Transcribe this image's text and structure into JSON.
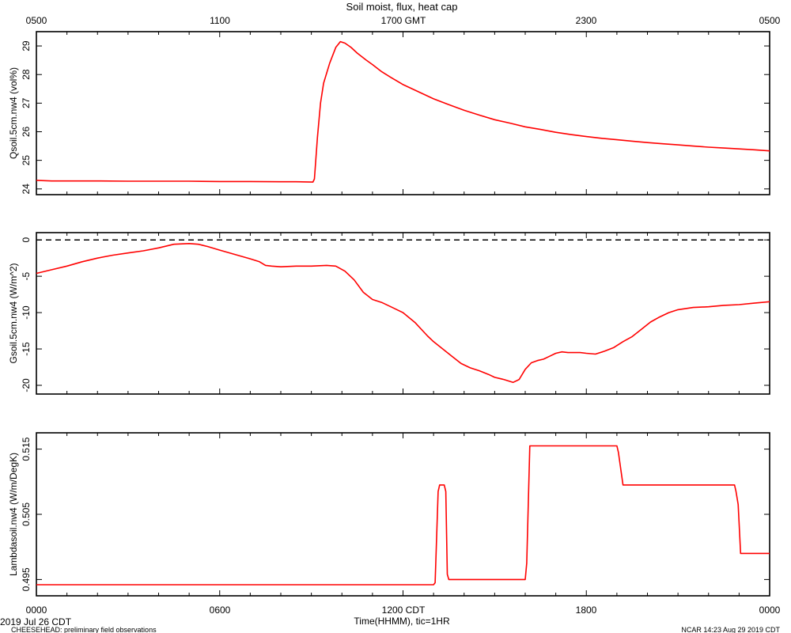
{
  "title": "Soil moist, flux, heat cap",
  "top_axis": {
    "tick_labels": [
      "0500",
      "1100",
      "1700 GMT",
      "2300",
      "0500"
    ]
  },
  "bottom_axis": {
    "tick_labels": [
      "0000",
      "0600",
      "1200 CDT",
      "1800",
      "0000"
    ],
    "xlabel": "Time(HHMM), tic=1HR"
  },
  "footer": {
    "date": "2019 Jul 26 CDT",
    "project": "CHEESEHEAD: preliminary field observations",
    "stamp": "NCAR 14:23 Aug 29 2019 CDT"
  },
  "colors": {
    "series": "#ff0000",
    "axes": "#000000",
    "zero_line": "#000000"
  },
  "chart_data": [
    {
      "type": "line",
      "ylabel": "Qsoil.5cm.nw4 (vol%)",
      "xlim": [
        0,
        24
      ],
      "ylim": [
        23.8,
        29.5
      ],
      "yticks": [
        24,
        25,
        26,
        27,
        28,
        29
      ],
      "grid": false,
      "series": [
        {
          "x": [
            0,
            0.5,
            1,
            2,
            3,
            4,
            5,
            6,
            7,
            8,
            8.5,
            9.0,
            9.05,
            9.1,
            9.2,
            9.3,
            9.4,
            9.6,
            9.8,
            9.95,
            10.1,
            10.3,
            10.5,
            10.8,
            11.0,
            11.3,
            11.6,
            12,
            12.5,
            13,
            13.5,
            14,
            14.5,
            15,
            15.5,
            16,
            16.5,
            17,
            17.5,
            18,
            18.5,
            19,
            19.5,
            20,
            20.5,
            21,
            21.5,
            22,
            22.5,
            23,
            23.5,
            24
          ],
          "y": [
            24.3,
            24.28,
            24.28,
            24.28,
            24.27,
            24.27,
            24.27,
            24.26,
            24.26,
            24.25,
            24.25,
            24.24,
            24.24,
            24.35,
            25.8,
            27.0,
            27.7,
            28.4,
            28.95,
            29.15,
            29.1,
            28.95,
            28.75,
            28.5,
            28.35,
            28.1,
            27.9,
            27.65,
            27.4,
            27.15,
            26.95,
            26.75,
            26.58,
            26.42,
            26.3,
            26.17,
            26.08,
            25.98,
            25.9,
            25.83,
            25.77,
            25.72,
            25.67,
            25.62,
            25.58,
            25.54,
            25.5,
            25.46,
            25.43,
            25.4,
            25.37,
            25.33
          ]
        }
      ]
    },
    {
      "type": "line",
      "ylabel": "Gsoil.5cm.nw4 (W/m^2)",
      "xlim": [
        0,
        24
      ],
      "ylim": [
        -21.2,
        1.0
      ],
      "yticks": [
        0,
        -5,
        -10,
        -15,
        -20
      ],
      "reference_line": 0,
      "grid": false,
      "series": [
        {
          "x": [
            0,
            0.5,
            1,
            1.5,
            2,
            2.5,
            3,
            3.5,
            4,
            4.5,
            5,
            5.3,
            5.6,
            6,
            6.5,
            7,
            7.3,
            7.5,
            7.7,
            8,
            8.5,
            9,
            9.5,
            9.8,
            10.1,
            10.4,
            10.7,
            11,
            11.3,
            11.6,
            12,
            12.4,
            12.8,
            13,
            13.3,
            13.6,
            13.9,
            14.2,
            14.5,
            14.8,
            15.0,
            15.3,
            15.6,
            15.8,
            16.0,
            16.2,
            16.4,
            16.6,
            16.8,
            17.0,
            17.2,
            17.4,
            17.6,
            17.8,
            18.0,
            18.3,
            18.6,
            18.9,
            19.2,
            19.5,
            19.8,
            20.1,
            20.4,
            20.7,
            21,
            21.5,
            22,
            22.5,
            23,
            23.5,
            24
          ],
          "y": [
            -4.6,
            -4.1,
            -3.6,
            -3.0,
            -2.5,
            -2.1,
            -1.8,
            -1.5,
            -1.1,
            -0.6,
            -0.5,
            -0.6,
            -0.9,
            -1.4,
            -2.0,
            -2.6,
            -3.0,
            -3.5,
            -3.6,
            -3.7,
            -3.6,
            -3.6,
            -3.5,
            -3.6,
            -4.3,
            -5.5,
            -7.2,
            -8.2,
            -8.6,
            -9.2,
            -10.0,
            -11.4,
            -13.2,
            -14.0,
            -15.0,
            -16.0,
            -17.0,
            -17.6,
            -18.0,
            -18.5,
            -18.9,
            -19.2,
            -19.6,
            -19.2,
            -17.8,
            -16.9,
            -16.6,
            -16.4,
            -16.0,
            -15.6,
            -15.4,
            -15.5,
            -15.5,
            -15.5,
            -15.6,
            -15.7,
            -15.3,
            -14.8,
            -14.0,
            -13.3,
            -12.3,
            -11.3,
            -10.6,
            -10.0,
            -9.6,
            -9.3,
            -9.2,
            -9.0,
            -8.9,
            -8.7,
            -8.5
          ]
        }
      ]
    },
    {
      "type": "line",
      "ylabel": "Lambdasoil.nw4 (W/m/DegK)",
      "xlim": [
        0,
        24
      ],
      "ylim": [
        0.4925,
        0.5175
      ],
      "yticks": [
        0.495,
        0.505,
        0.515
      ],
      "grid": false,
      "series": [
        {
          "x": [
            0,
            13.0,
            13.05,
            13.15,
            13.2,
            13.35,
            13.4,
            13.45,
            13.5,
            14,
            15,
            16.0,
            16.05,
            16.15,
            17,
            18,
            19.0,
            19.05,
            19.2,
            20,
            21.5,
            22.5,
            22.85,
            22.9,
            22.97,
            23.05,
            24
          ],
          "y": [
            0.4942,
            0.4942,
            0.4945,
            0.5085,
            0.5095,
            0.5095,
            0.5085,
            0.4958,
            0.495,
            0.495,
            0.495,
            0.495,
            0.4975,
            0.5155,
            0.5155,
            0.5155,
            0.5155,
            0.5145,
            0.5095,
            0.5095,
            0.5095,
            0.5095,
            0.5095,
            0.5085,
            0.5065,
            0.499,
            0.499
          ]
        }
      ]
    }
  ]
}
